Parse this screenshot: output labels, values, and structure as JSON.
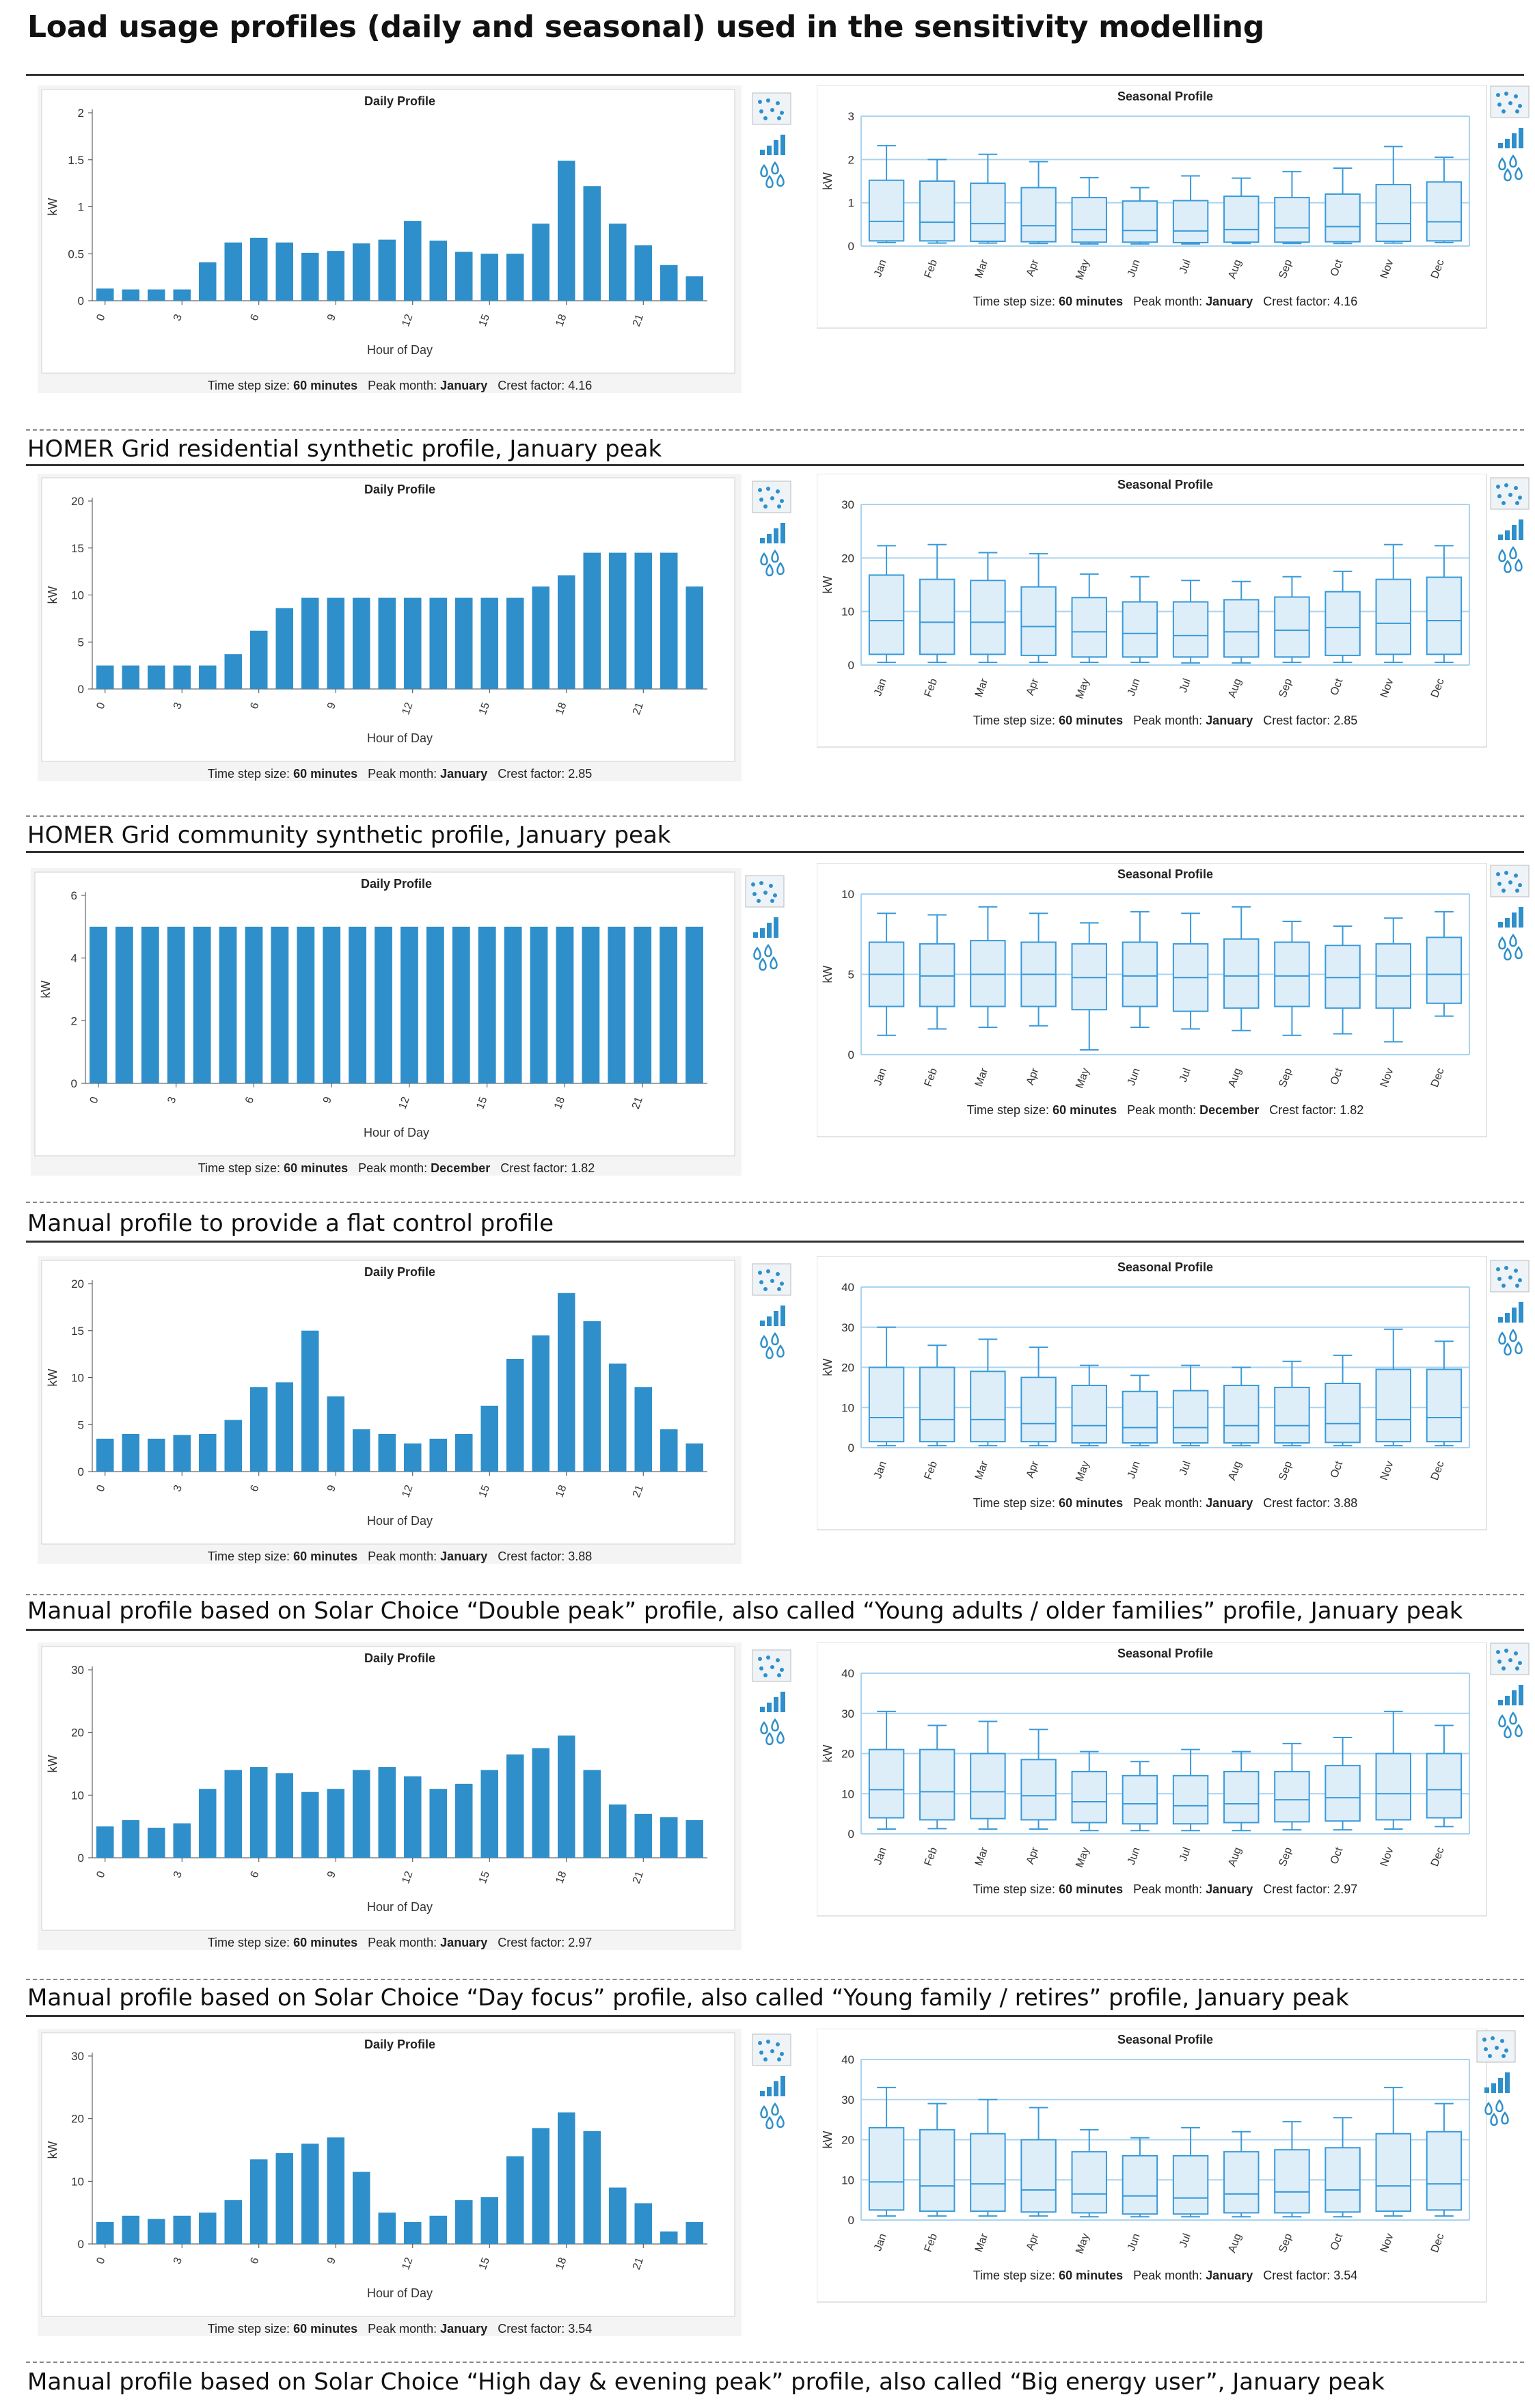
{
  "title": "Load usage profiles (daily and seasonal) used in the sensitivity modelling",
  "colors": {
    "bar": "#2e8fca",
    "box_stroke": "#3a9ad9",
    "box_fill": "#ddeef9",
    "grid": "#a9d3f0",
    "axis": "#444444"
  },
  "icons": [
    "scatter-dots-icon",
    "bar-chart-icon",
    "droplets-icon"
  ],
  "labels": {
    "hour_axis": "Hour of Day",
    "kw_axis": "kW",
    "time_step_prefix": "Time step size:",
    "time_step_value": "60 minutes",
    "peak_month_prefix": "Peak month:",
    "crest_prefix": "Crest factor:"
  },
  "captions": [
    "HOMER Grid residential synthetic profile, January peak",
    "HOMER Grid community synthetic profile, January peak",
    "Manual profile to provide a flat control profile",
    "Manual profile based on Solar Choice “Double peak” profile, also called  “Young adults / older families” profile, January peak",
    "Manual profile based on Solar Choice “Day focus” profile, also called “Young family / retires”   profile, January peak",
    "Manual profile based on Solar Choice “High day & evening peak” profile, also called “Big energy user”, January peak"
  ],
  "chart_data": [
    {
      "type": "bar",
      "title": "Daily Profile",
      "categories": [
        "0",
        "1",
        "2",
        "3",
        "4",
        "5",
        "6",
        "7",
        "8",
        "9",
        "10",
        "11",
        "12",
        "13",
        "14",
        "15",
        "16",
        "17",
        "18",
        "19",
        "20",
        "21",
        "22",
        "23"
      ],
      "x_tick_labels": [
        "0",
        "3",
        "6",
        "9",
        "12",
        "15",
        "18",
        "21"
      ],
      "values": [
        0.13,
        0.12,
        0.12,
        0.12,
        0.41,
        0.62,
        0.67,
        0.62,
        0.51,
        0.53,
        0.61,
        0.65,
        0.85,
        0.64,
        0.52,
        0.5,
        0.5,
        0.82,
        1.49,
        1.22,
        0.82,
        0.59,
        0.38,
        0.26
      ],
      "ylim": [
        0,
        2
      ],
      "yticks": [
        "0",
        "0.5",
        "1",
        "1.5",
        "2"
      ],
      "ytick_values": [
        0,
        0.5,
        1,
        1.5,
        2
      ],
      "xlabel": "Hour of Day",
      "ylabel": "kW",
      "time_step": "60 minutes",
      "peak_month": "January",
      "crest_factor": "4.16"
    },
    {
      "type": "box",
      "title": "Seasonal Profile",
      "categories": [
        "Jan",
        "Feb",
        "Mar",
        "Apr",
        "May",
        "Jun",
        "Jul",
        "Aug",
        "Sep",
        "Oct",
        "Nov",
        "Dec"
      ],
      "ylim": [
        0,
        3
      ],
      "yticks": [
        "0",
        "1",
        "2",
        "3"
      ],
      "ytick_values": [
        0,
        1,
        2,
        3
      ],
      "min": [
        0.08,
        0.07,
        0.07,
        0.06,
        0.05,
        0.05,
        0.05,
        0.06,
        0.06,
        0.06,
        0.07,
        0.08
      ],
      "q1": [
        0.12,
        0.12,
        0.11,
        0.1,
        0.09,
        0.09,
        0.08,
        0.09,
        0.09,
        0.1,
        0.11,
        0.12
      ],
      "median": [
        0.57,
        0.55,
        0.52,
        0.47,
        0.38,
        0.36,
        0.35,
        0.38,
        0.42,
        0.45,
        0.52,
        0.56
      ],
      "q3": [
        1.52,
        1.5,
        1.45,
        1.35,
        1.12,
        1.04,
        1.05,
        1.15,
        1.12,
        1.2,
        1.42,
        1.48
      ],
      "max": [
        2.32,
        2.0,
        2.12,
        1.95,
        1.58,
        1.35,
        1.62,
        1.57,
        1.72,
        1.8,
        2.3,
        2.05
      ],
      "ylabel": "kW",
      "time_step": "60 minutes",
      "peak_month": "January",
      "crest_factor": "4.16"
    },
    {
      "type": "bar",
      "title": "Daily Profile",
      "categories": [
        "0",
        "1",
        "2",
        "3",
        "4",
        "5",
        "6",
        "7",
        "8",
        "9",
        "10",
        "11",
        "12",
        "13",
        "14",
        "15",
        "16",
        "17",
        "18",
        "19",
        "20",
        "21",
        "22",
        "23"
      ],
      "x_tick_labels": [
        "0",
        "3",
        "6",
        "9",
        "12",
        "15",
        "18",
        "21"
      ],
      "values": [
        2.5,
        2.5,
        2.5,
        2.5,
        2.5,
        3.7,
        6.2,
        8.6,
        9.7,
        9.7,
        9.7,
        9.7,
        9.7,
        9.7,
        9.7,
        9.7,
        9.7,
        10.9,
        12.1,
        14.5,
        14.5,
        14.5,
        14.5,
        10.9
      ],
      "ylim": [
        0,
        20
      ],
      "yticks": [
        "0",
        "5",
        "10",
        "15",
        "20"
      ],
      "ytick_values": [
        0,
        5,
        10,
        15,
        20
      ],
      "xlabel": "Hour of Day",
      "ylabel": "kW",
      "time_step": "60 minutes",
      "peak_month": "January",
      "crest_factor": "2.85"
    },
    {
      "type": "box",
      "title": "Seasonal Profile",
      "categories": [
        "Jan",
        "Feb",
        "Mar",
        "Apr",
        "May",
        "Jun",
        "Jul",
        "Aug",
        "Sep",
        "Oct",
        "Nov",
        "Dec"
      ],
      "ylim": [
        0,
        30
      ],
      "yticks": [
        "0",
        "10",
        "20",
        "30"
      ],
      "ytick_values": [
        0,
        10,
        20,
        30
      ],
      "min": [
        0.5,
        0.5,
        0.5,
        0.5,
        0.5,
        0.5,
        0.4,
        0.4,
        0.5,
        0.5,
        0.5,
        0.5
      ],
      "q1": [
        2,
        2,
        2,
        1.8,
        1.5,
        1.5,
        1.5,
        1.5,
        1.5,
        1.8,
        2,
        2
      ],
      "median": [
        8.3,
        8,
        8,
        7.2,
        6.2,
        5.9,
        5.5,
        6.2,
        6.5,
        7,
        7.8,
        8.3
      ],
      "q3": [
        16.8,
        16,
        15.8,
        14.6,
        12.6,
        11.8,
        11.8,
        12.2,
        12.7,
        13.7,
        16,
        16.4
      ],
      "max": [
        22.3,
        22.5,
        21,
        20.8,
        17,
        16.5,
        15.8,
        15.6,
        16.5,
        17.5,
        22.5,
        22.3
      ],
      "ylabel": "kW",
      "time_step": "60 minutes",
      "peak_month": "January",
      "crest_factor": "2.85"
    },
    {
      "type": "bar",
      "title": "Daily Profile",
      "categories": [
        "0",
        "1",
        "2",
        "3",
        "4",
        "5",
        "6",
        "7",
        "8",
        "9",
        "10",
        "11",
        "12",
        "13",
        "14",
        "15",
        "16",
        "17",
        "18",
        "19",
        "20",
        "21",
        "22",
        "23"
      ],
      "x_tick_labels": [
        "0",
        "3",
        "6",
        "9",
        "12",
        "15",
        "18",
        "21"
      ],
      "values": [
        5,
        5,
        5,
        5,
        5,
        5,
        5,
        5,
        5,
        5,
        5,
        5,
        5,
        5,
        5,
        5,
        5,
        5,
        5,
        5,
        5,
        5,
        5,
        5
      ],
      "ylim": [
        0,
        6
      ],
      "yticks": [
        "0",
        "2",
        "4",
        "6"
      ],
      "ytick_values": [
        0,
        2,
        4,
        6
      ],
      "xlabel": "Hour of Day",
      "ylabel": "kW",
      "time_step": "60 minutes",
      "peak_month": "December",
      "crest_factor": "1.82"
    },
    {
      "type": "box",
      "title": "Seasonal Profile",
      "categories": [
        "Jan",
        "Feb",
        "Mar",
        "Apr",
        "May",
        "Jun",
        "Jul",
        "Aug",
        "Sep",
        "Oct",
        "Nov",
        "Dec"
      ],
      "ylim": [
        0,
        10
      ],
      "yticks": [
        "0",
        "5",
        "10"
      ],
      "ytick_values": [
        0,
        5,
        10
      ],
      "min": [
        1.2,
        1.6,
        1.7,
        1.8,
        0.3,
        1.7,
        1.6,
        1.5,
        1.2,
        1.3,
        0.8,
        2.4
      ],
      "q1": [
        3,
        3,
        3,
        3,
        2.8,
        3,
        2.7,
        2.9,
        3,
        2.9,
        2.9,
        3.2
      ],
      "median": [
        5,
        4.9,
        5,
        5,
        4.8,
        4.9,
        4.8,
        4.9,
        4.9,
        4.8,
        4.9,
        5
      ],
      "q3": [
        7,
        6.9,
        7.1,
        7,
        6.9,
        7,
        6.9,
        7.2,
        7,
        6.8,
        6.9,
        7.3
      ],
      "max": [
        8.8,
        8.7,
        9.2,
        8.8,
        8.2,
        8.9,
        8.8,
        9.2,
        8.3,
        8,
        8.5,
        8.9
      ],
      "ylabel": "kW",
      "time_step": "60 minutes",
      "peak_month": "December",
      "crest_factor": "1.82"
    },
    {
      "type": "bar",
      "title": "Daily Profile",
      "categories": [
        "0",
        "1",
        "2",
        "3",
        "4",
        "5",
        "6",
        "7",
        "8",
        "9",
        "10",
        "11",
        "12",
        "13",
        "14",
        "15",
        "16",
        "17",
        "18",
        "19",
        "20",
        "21",
        "22",
        "23"
      ],
      "x_tick_labels": [
        "0",
        "3",
        "6",
        "9",
        "12",
        "15",
        "18",
        "21"
      ],
      "values": [
        3.5,
        4,
        3.5,
        3.9,
        4,
        5.5,
        9,
        9.5,
        15,
        8,
        4.5,
        4,
        3,
        3.5,
        4,
        7,
        12,
        14.5,
        19,
        16,
        11.5,
        9,
        4.5,
        3
      ],
      "ylim": [
        0,
        20
      ],
      "yticks": [
        "0",
        "5",
        "10",
        "15",
        "20"
      ],
      "ytick_values": [
        0,
        5,
        10,
        15,
        20
      ],
      "xlabel": "Hour of Day",
      "ylabel": "kW",
      "time_step": "60 minutes",
      "peak_month": "January",
      "crest_factor": "3.88"
    },
    {
      "type": "box",
      "title": "Seasonal Profile",
      "categories": [
        "Jan",
        "Feb",
        "Mar",
        "Apr",
        "May",
        "Jun",
        "Jul",
        "Aug",
        "Sep",
        "Oct",
        "Nov",
        "Dec"
      ],
      "ylim": [
        0,
        40
      ],
      "yticks": [
        "0",
        "10",
        "20",
        "30",
        "40"
      ],
      "ytick_values": [
        0,
        10,
        20,
        30,
        40
      ],
      "min": [
        0.5,
        0.5,
        0.5,
        0.5,
        0.5,
        0.5,
        0.5,
        0.5,
        0.5,
        0.5,
        0.5,
        0.5
      ],
      "q1": [
        1.5,
        1.5,
        1.5,
        1.5,
        1.2,
        1.2,
        1.2,
        1.2,
        1.2,
        1.3,
        1.5,
        1.5
      ],
      "median": [
        7.5,
        7,
        7,
        6,
        5.5,
        5,
        5,
        5.5,
        5.5,
        6,
        7,
        7.5
      ],
      "q3": [
        20,
        20,
        19,
        17.5,
        15.5,
        14,
        14.2,
        15.5,
        15,
        16,
        19.5,
        19.5
      ],
      "max": [
        30,
        25.5,
        27,
        25,
        20.5,
        18,
        20.5,
        20,
        21.5,
        23,
        29.5,
        26.5
      ],
      "ylabel": "kW",
      "time_step": "60 minutes",
      "peak_month": "January",
      "crest_factor": "3.88"
    },
    {
      "type": "bar",
      "title": "Daily Profile",
      "categories": [
        "0",
        "1",
        "2",
        "3",
        "4",
        "5",
        "6",
        "7",
        "8",
        "9",
        "10",
        "11",
        "12",
        "13",
        "14",
        "15",
        "16",
        "17",
        "18",
        "19",
        "20",
        "21",
        "22",
        "23"
      ],
      "x_tick_labels": [
        "0",
        "3",
        "6",
        "9",
        "12",
        "15",
        "18",
        "21"
      ],
      "values": [
        5,
        6,
        4.8,
        5.5,
        11,
        14,
        14.5,
        13.5,
        10.5,
        11,
        14,
        14.5,
        13,
        11,
        11.8,
        14,
        16.5,
        17.5,
        19.5,
        14,
        8.5,
        7,
        6.5,
        6
      ],
      "ylim": [
        0,
        30
      ],
      "yticks": [
        "0",
        "10",
        "20",
        "30"
      ],
      "ytick_values": [
        0,
        10,
        20,
        30
      ],
      "xlabel": "Hour of Day",
      "ylabel": "kW",
      "time_step": "60 minutes",
      "peak_month": "January",
      "crest_factor": "2.97"
    },
    {
      "type": "box",
      "title": "Seasonal Profile",
      "categories": [
        "Jan",
        "Feb",
        "Mar",
        "Apr",
        "May",
        "Jun",
        "Jul",
        "Aug",
        "Sep",
        "Oct",
        "Nov",
        "Dec"
      ],
      "ylim": [
        0,
        40
      ],
      "yticks": [
        "0",
        "10",
        "20",
        "30",
        "40"
      ],
      "ytick_values": [
        0,
        10,
        20,
        30,
        40
      ],
      "min": [
        1.2,
        1.3,
        1.2,
        1.2,
        0.8,
        0.8,
        0.8,
        0.8,
        1,
        1,
        1.2,
        1.8
      ],
      "q1": [
        4,
        3.5,
        3.8,
        3.5,
        2.8,
        2.5,
        2.5,
        2.8,
        3,
        3.2,
        3.5,
        4
      ],
      "median": [
        11,
        10.5,
        10.5,
        9.5,
        8,
        7.5,
        7,
        7.5,
        8.5,
        9,
        10,
        11
      ],
      "q3": [
        21,
        21,
        20,
        18.5,
        15.5,
        14.5,
        14.5,
        15.5,
        15.5,
        17,
        20,
        20
      ],
      "max": [
        30.5,
        27,
        28,
        26,
        20.5,
        18,
        21,
        20.5,
        22.5,
        24,
        30.5,
        27
      ],
      "ylabel": "kW",
      "time_step": "60 minutes",
      "peak_month": "January",
      "crest_factor": "2.97"
    },
    {
      "type": "bar",
      "title": "Daily Profile",
      "categories": [
        "0",
        "1",
        "2",
        "3",
        "4",
        "5",
        "6",
        "7",
        "8",
        "9",
        "10",
        "11",
        "12",
        "13",
        "14",
        "15",
        "16",
        "17",
        "18",
        "19",
        "20",
        "21",
        "22",
        "23"
      ],
      "x_tick_labels": [
        "0",
        "3",
        "6",
        "9",
        "12",
        "15",
        "18",
        "21"
      ],
      "values": [
        3.5,
        4.5,
        4,
        4.5,
        5,
        7,
        13.5,
        14.5,
        16,
        17,
        11.5,
        5,
        3.5,
        4.5,
        7,
        7.5,
        14,
        18.5,
        21,
        18,
        9,
        6.5,
        2,
        3.5
      ],
      "ylim": [
        0,
        30
      ],
      "yticks": [
        "0",
        "10",
        "20",
        "30"
      ],
      "ytick_values": [
        0,
        10,
        20,
        30
      ],
      "xlabel": "Hour of Day",
      "ylabel": "kW",
      "time_step": "60 minutes",
      "peak_month": "January",
      "crest_factor": "3.54"
    },
    {
      "type": "box",
      "title": "Seasonal Profile",
      "categories": [
        "Jan",
        "Feb",
        "Mar",
        "Apr",
        "May",
        "Jun",
        "Jul",
        "Aug",
        "Sep",
        "Oct",
        "Nov",
        "Dec"
      ],
      "ylim": [
        0,
        40
      ],
      "yticks": [
        "0",
        "10",
        "20",
        "30",
        "40"
      ],
      "ytick_values": [
        0,
        10,
        20,
        30,
        40
      ],
      "min": [
        1,
        1,
        1,
        1,
        0.8,
        0.8,
        0.8,
        0.8,
        0.8,
        0.8,
        1,
        1
      ],
      "q1": [
        2.5,
        2.2,
        2.2,
        2,
        1.8,
        1.5,
        1.5,
        1.8,
        1.8,
        2,
        2.2,
        2.5
      ],
      "median": [
        9.5,
        8.5,
        9,
        7.5,
        6.5,
        6,
        5.5,
        6.5,
        7,
        7.5,
        8.5,
        9
      ],
      "q3": [
        23,
        22.5,
        21.5,
        20,
        17,
        16,
        16,
        17,
        17.5,
        18,
        21.5,
        22
      ],
      "max": [
        33,
        29,
        30,
        28,
        22.5,
        20.5,
        23,
        22,
        24.5,
        25.5,
        33,
        29
      ],
      "ylabel": "kW",
      "time_step": "60 minutes",
      "peak_month": "January",
      "crest_factor": "3.54"
    }
  ]
}
